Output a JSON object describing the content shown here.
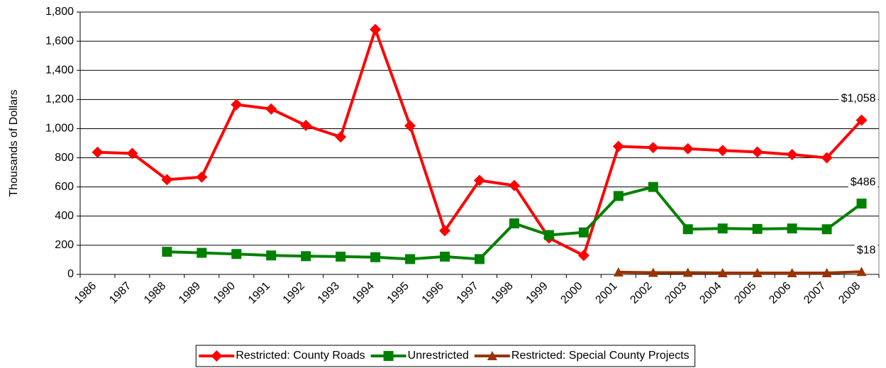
{
  "chart_data": {
    "type": "line",
    "y_label": "Thousands of Dollars",
    "categories": [
      "1986",
      "1987",
      "1988",
      "1989",
      "1990",
      "1991",
      "1992",
      "1993",
      "1994",
      "1995",
      "1996",
      "1997",
      "1998",
      "1999",
      "2000",
      "2001",
      "2002",
      "2003",
      "2004",
      "2005",
      "2006",
      "2007",
      "2008"
    ],
    "series": [
      {
        "name": "Restricted: County Roads",
        "color": "#ff0000",
        "marker": "diamond",
        "values": [
          838,
          830,
          650,
          668,
          1165,
          1135,
          1022,
          943,
          1680,
          1020,
          300,
          645,
          610,
          250,
          130,
          878,
          870,
          862,
          850,
          840,
          822,
          800,
          1058
        ],
        "value_labels": [
          null,
          null,
          null,
          null,
          null,
          null,
          null,
          null,
          null,
          null,
          null,
          null,
          null,
          null,
          null,
          null,
          null,
          null,
          null,
          null,
          null,
          null,
          "$1,058"
        ]
      },
      {
        "name": "Unrestricted",
        "color": "#008000",
        "marker": "square",
        "values": [
          null,
          null,
          155,
          148,
          140,
          130,
          125,
          122,
          118,
          105,
          122,
          105,
          350,
          270,
          288,
          538,
          600,
          310,
          315,
          312,
          315,
          310,
          486
        ],
        "value_labels": [
          null,
          null,
          null,
          null,
          null,
          null,
          null,
          null,
          null,
          null,
          null,
          null,
          null,
          null,
          null,
          null,
          null,
          null,
          null,
          null,
          null,
          null,
          "$486"
        ]
      },
      {
        "name": "Restricted: Special County Projects",
        "color": "#993300",
        "marker": "triangle",
        "values": [
          null,
          null,
          null,
          null,
          null,
          null,
          null,
          null,
          null,
          null,
          null,
          null,
          null,
          null,
          null,
          15,
          12,
          12,
          10,
          10,
          10,
          10,
          18
        ],
        "value_labels": [
          null,
          null,
          null,
          null,
          null,
          null,
          null,
          null,
          null,
          null,
          null,
          null,
          null,
          null,
          null,
          null,
          null,
          null,
          null,
          null,
          null,
          null,
          "$18"
        ]
      }
    ],
    "ylim": [
      0,
      1800
    ],
    "yticks": [
      0,
      200,
      400,
      600,
      800,
      {
        "value": 1000,
        "label": "1,000"
      },
      {
        "value": 1200,
        "label": "1,200"
      },
      {
        "value": 1400,
        "label": "1,400"
      },
      {
        "value": 1600,
        "label": "1,600"
      },
      {
        "value": 1800,
        "label": "1,800"
      }
    ],
    "grid": true,
    "legend": "bottom"
  }
}
